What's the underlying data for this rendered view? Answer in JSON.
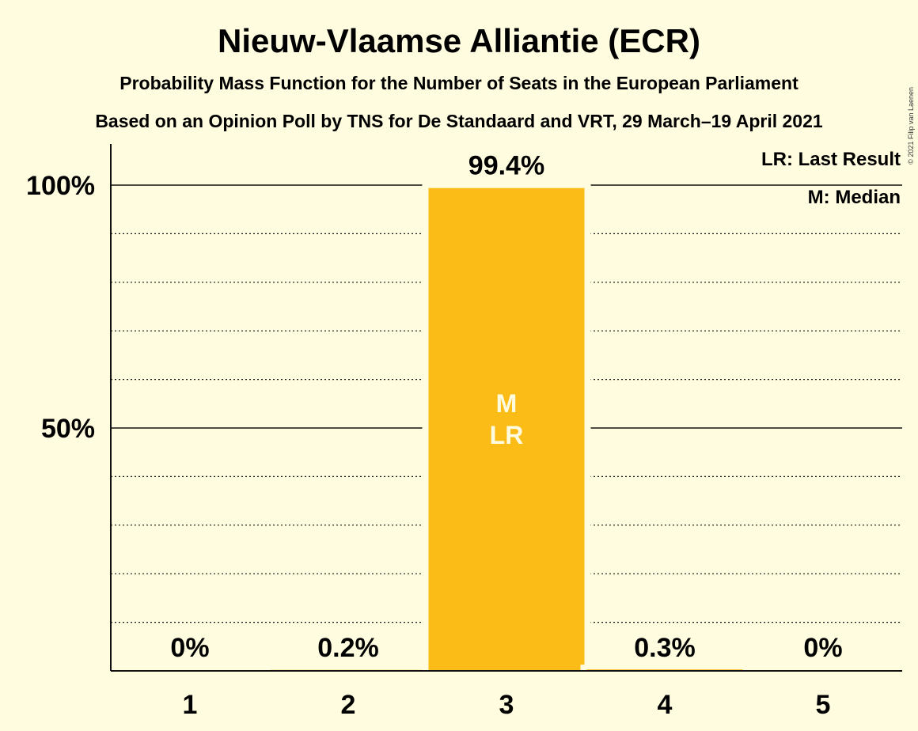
{
  "chart_data": {
    "type": "bar",
    "title": "Nieuw-Vlaamse Alliantie (ECR)",
    "subtitle": "Probability Mass Function for the Number of Seats in the European Parliament",
    "subtitle2": "Based on an Opinion Poll by TNS for De Standaard and VRT, 29 March–19 April 2021",
    "categories": [
      "1",
      "2",
      "3",
      "4",
      "5"
    ],
    "values": [
      0,
      0.2,
      99.4,
      0.3,
      0
    ],
    "value_labels": [
      "0%",
      "0.2%",
      "99.4%",
      "0.3%",
      "0%"
    ],
    "ylim": [
      0,
      100
    ],
    "yticks": [
      {
        "value": 50,
        "label": "50%"
      },
      {
        "value": 100,
        "label": "100%"
      }
    ],
    "minor_gridlines": [
      10,
      20,
      30,
      40,
      60,
      70,
      80,
      90
    ],
    "grid": true,
    "bar_color": "#FBBC17",
    "median_index": 2,
    "last_result_index": 2,
    "median_marker": "M",
    "last_result_marker": "LR",
    "legend": {
      "position": "top-right",
      "items": [
        "LR: Last Result",
        "M: Median"
      ]
    },
    "credit": "© 2021 Filip van Laenen"
  }
}
